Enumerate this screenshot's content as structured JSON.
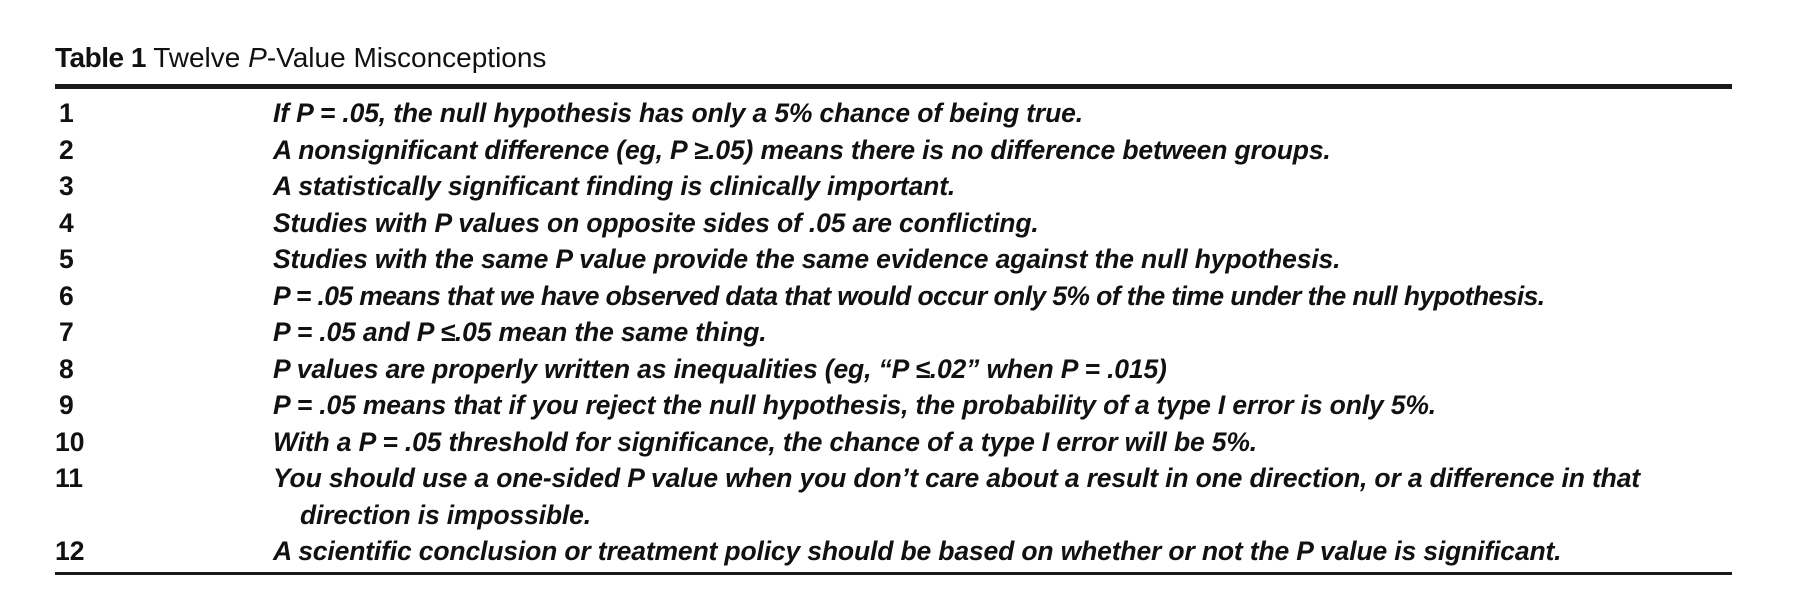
{
  "table": {
    "label": "Table 1",
    "title_pre": "Twelve ",
    "title_italic": "P",
    "title_post": "-Value Misconceptions",
    "rows": [
      {
        "num": "1",
        "text": "If P = .05, the null hypothesis has only a 5% chance of being true."
      },
      {
        "num": "2",
        "text": "A nonsignificant difference (eg, P ≥.05) means there is no difference between groups."
      },
      {
        "num": "3",
        "text": "A statistically significant finding is clinically important."
      },
      {
        "num": "4",
        "text": "Studies with P values on opposite sides of .05 are conflicting."
      },
      {
        "num": "5",
        "text": "Studies with the same P value provide the same evidence against the null hypothesis."
      },
      {
        "num": "6",
        "text": "P = .05 means that we have observed data that would occur only 5% of the time under the null hypothesis."
      },
      {
        "num": "7",
        "text": "P = .05 and P ≤.05 mean the same thing."
      },
      {
        "num": "8",
        "text": "P values are properly written as inequalities (eg, “P ≤.02” when P = .015)"
      },
      {
        "num": "9",
        "text": "P = .05 means that if you reject the null hypothesis, the probability of a type I error is only 5%."
      },
      {
        "num": "10",
        "text": "With a P = .05 threshold for significance, the chance of a type I error will be 5%."
      },
      {
        "num": "11",
        "text": "You should use a one-sided P value when you don’t care about a result in one direction, or a difference in that direction is impossible."
      },
      {
        "num": "12",
        "text": "A scientific conclusion or treatment policy should be based on whether or not the P value is significant."
      }
    ]
  }
}
